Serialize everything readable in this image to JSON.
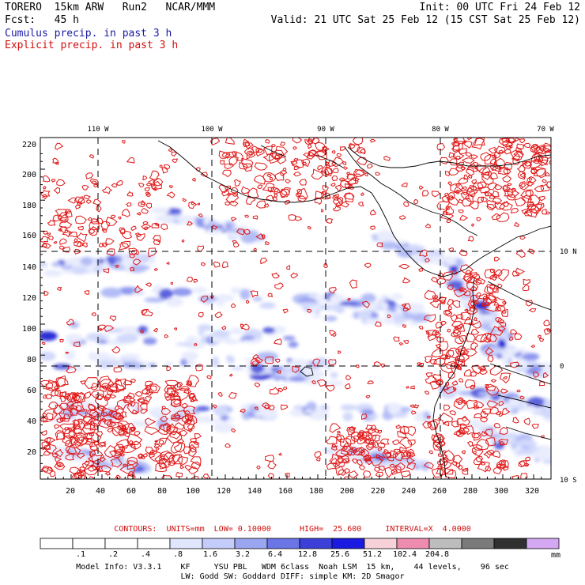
{
  "header": {
    "line1_left": "TORERO  15km ARW   Run2   NCAR/MMM",
    "line1_right": "Init: 00 UTC Fri 24 Feb 12",
    "line2_left": "Fcst:   45 h",
    "line2_right": "Valid: 21 UTC Sat 25 Feb 12 (15 CST Sat 25 Feb 12)",
    "field1": "Cumulus precip. in past 3 h",
    "field2": "Explicit precip. in past 3 h"
  },
  "map": {
    "top_longitudes": [
      "110 W",
      "100 W",
      "90 W",
      "80 W",
      "70 W"
    ],
    "right_latitudes": [
      "10 N",
      "0",
      "10 S"
    ],
    "y_ticks": [
      "220",
      "200",
      "180",
      "160",
      "140",
      "120",
      "100",
      "80",
      "60",
      "40",
      "20"
    ],
    "x_ticks": [
      "20",
      "40",
      "60",
      "80",
      "100",
      "120",
      "140",
      "160",
      "180",
      "200",
      "220",
      "240",
      "260",
      "280",
      "300",
      "320"
    ]
  },
  "contours": {
    "text": "CONTOURS:  UNITS=mm  LOW= 0.10000      HIGH=  25.600     INTERVAL=X  4.0000"
  },
  "legend": {
    "labels": [
      ".1",
      ".2",
      ".4",
      ".8",
      "1.6",
      "3.2",
      "6.4",
      "12.8",
      "25.6",
      "51.2",
      "102.4",
      "204.8"
    ],
    "unit": "mm",
    "colors": [
      "#ffffff",
      "#ffffff",
      "#ffffff",
      "#ffffff",
      "#e0e6fc",
      "#c4ccfa",
      "#9ba6f0",
      "#6a75e6",
      "#3c3fd8",
      "#1a1ae0",
      "#f6d2d8",
      "#ee8cb0",
      "#bdbdbd",
      "#7a7a7a",
      "#303030",
      "#d4a8f2"
    ]
  },
  "info": {
    "line1": "Model Info: V3.3.1    KF     YSU PBL   WDM 6class  Noah LSM  15 km,    44 levels,    96 sec",
    "line2": "LW: Godd SW: Goddard DIFF: simple KM: 2D Smagor"
  }
}
